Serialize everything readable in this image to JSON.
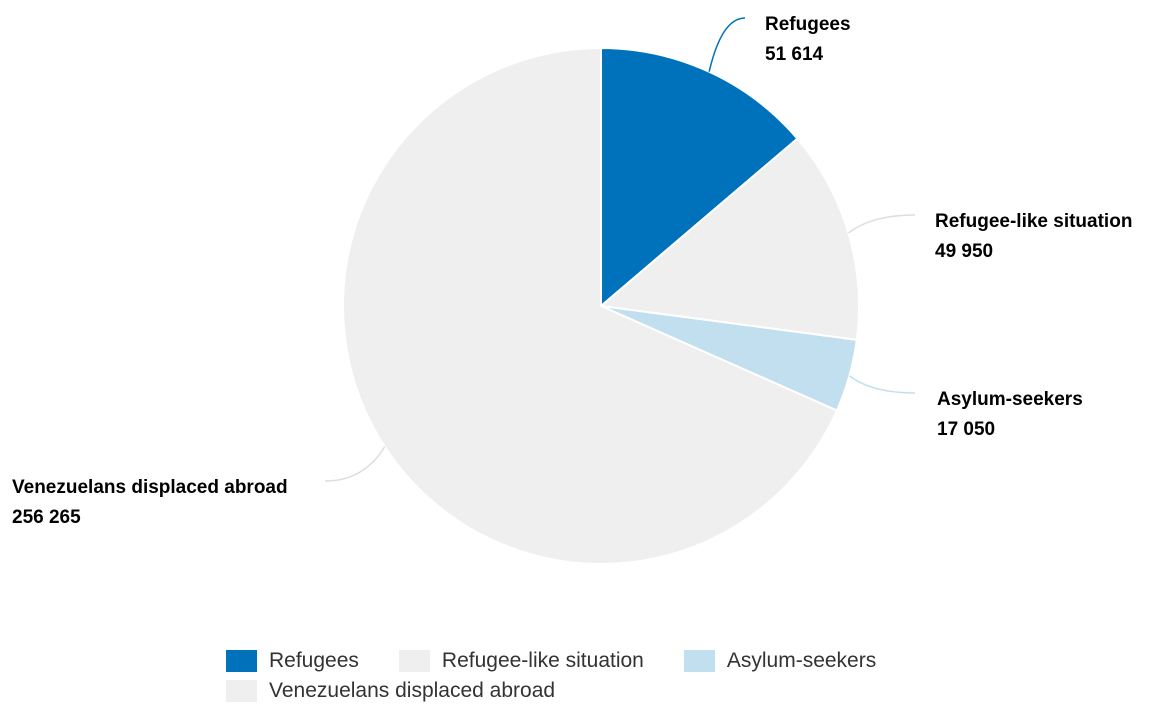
{
  "chart_data": {
    "type": "pie",
    "slices": [
      {
        "name": "Refugees",
        "value": 51614,
        "value_label": "51 614",
        "color": "#0072bc"
      },
      {
        "name": "Refugee-like situation",
        "value": 49950,
        "value_label": "49 950",
        "color": "#efefef"
      },
      {
        "name": "Asylum-seekers",
        "value": 17050,
        "value_label": "17 050",
        "color": "#c2dfef"
      },
      {
        "name": "Venezuelans displaced abroad",
        "value": 256265,
        "value_label": "256 265",
        "color": "#efefef"
      }
    ],
    "legend_position": "bottom-center",
    "start_angle": "12 o'clock, clockwise"
  },
  "legend": {
    "rows": [
      [
        {
          "label": "Refugees",
          "color": "#0072bc"
        },
        {
          "label": "Refugee-like situation",
          "color": "#efefef"
        },
        {
          "label": "Asylum-seekers",
          "color": "#c2dfef"
        }
      ],
      [
        {
          "label": "Venezuelans displaced abroad",
          "color": "#efefef"
        }
      ]
    ]
  }
}
